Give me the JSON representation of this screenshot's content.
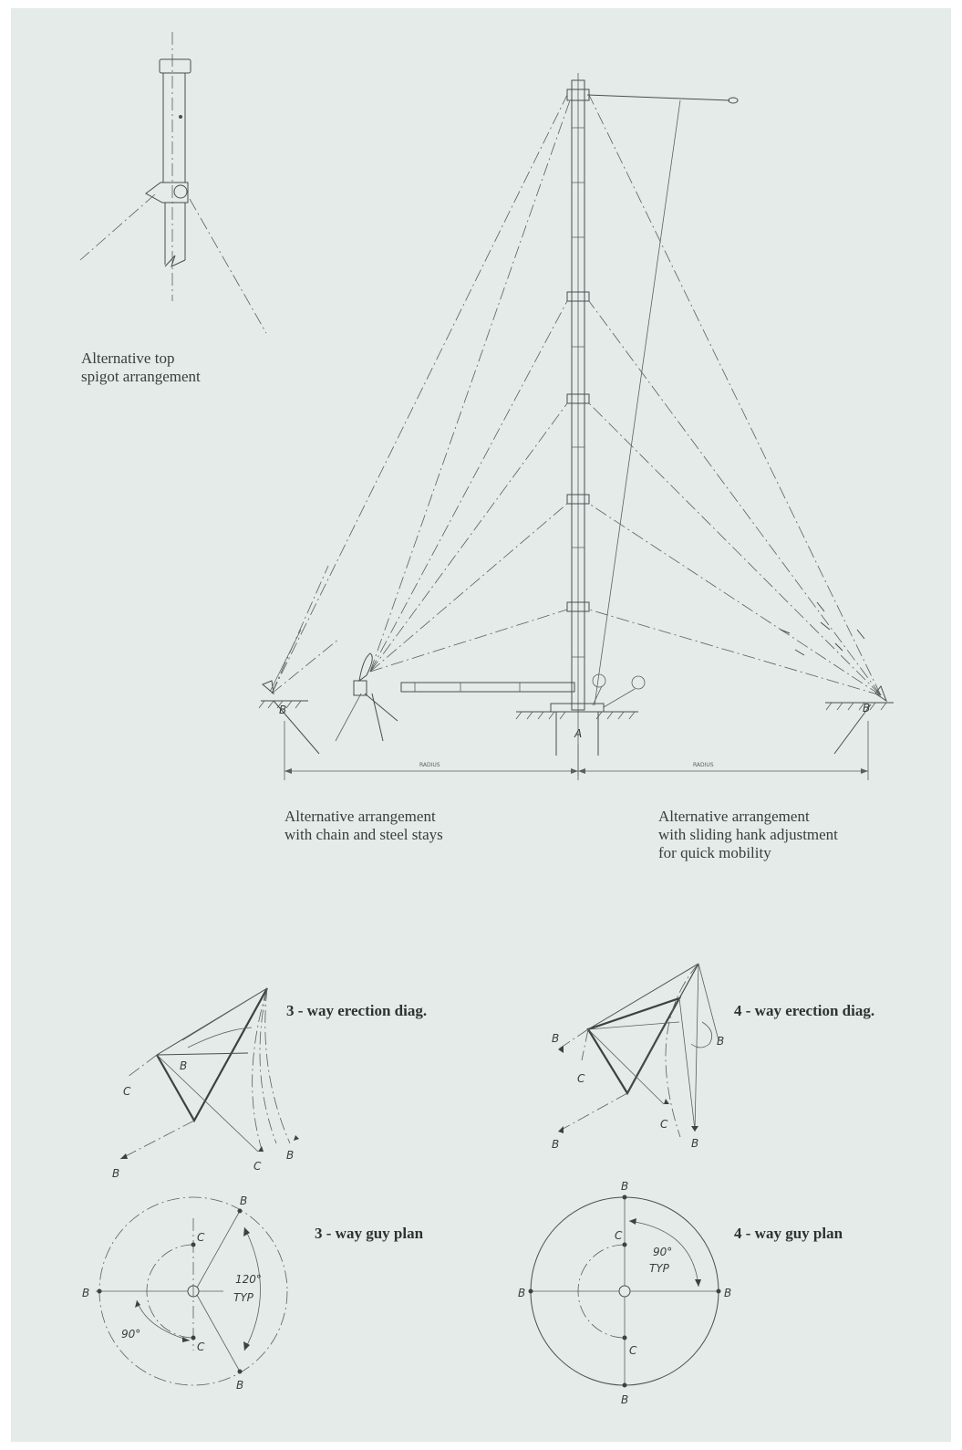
{
  "captions": {
    "top_spigot": "Alternative top\nspigot arrangement",
    "chain_steel": "Alternative arrangement\nwith chain and steel stays",
    "sliding_hank": "Alternative arrangement\nwith sliding hank adjustment\nfor quick mobility"
  },
  "headings": {
    "erection_3way": "3 - way erection diag.",
    "erection_4way": "4 - way erection diag.",
    "guy_plan_3way": "3 - way guy plan",
    "guy_plan_4way": "4 - way guy plan"
  },
  "mast_labels": {
    "anchor_left": "B",
    "anchor_right": "B",
    "mast_base": "A",
    "radius_left": "RADIUS",
    "radius_right": "RADIUS"
  },
  "erection_3way_labels": {
    "b_center": "B",
    "c_left": "C",
    "b_bottom": "B",
    "c_right": "C",
    "b_right": "B"
  },
  "erection_4way_labels": {
    "b_left": "B",
    "c_left": "C",
    "b_right": "B",
    "b_bottom_left": "B",
    "c_right": "C",
    "b_bottom_right": "B"
  },
  "plan_3way_labels": {
    "b_top": "B",
    "c_top": "C",
    "b_left": "B",
    "angle_120": "120°",
    "typ": "TYP",
    "angle_90": "90°",
    "c_bottom": "C",
    "b_bottom": "B"
  },
  "plan_4way_labels": {
    "b_top": "B",
    "c_top": "C",
    "angle_90": "90°",
    "typ": "TYP",
    "b_left": "B",
    "b_right": "B",
    "c_bottom": "C",
    "b_bottom": "B"
  },
  "colors": {
    "paper": "#e4ebe8",
    "ink": "#3a3d3e"
  }
}
